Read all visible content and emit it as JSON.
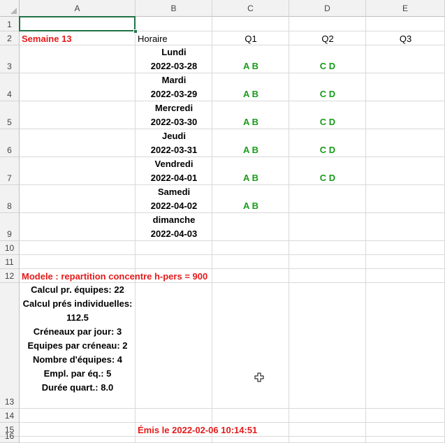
{
  "sheet": {
    "columns": [
      "A",
      "B",
      "C",
      "D",
      "E"
    ],
    "rows": [
      "1",
      "2",
      "3",
      "4",
      "5",
      "6",
      "7",
      "8",
      "9",
      "10",
      "11",
      "12",
      "13",
      "14",
      "15",
      "16"
    ]
  },
  "header_row": {
    "a2": "Semaine 13",
    "b2": "Horaire",
    "c2": "Q1",
    "d2": "Q2",
    "e2": "Q3"
  },
  "schedule": [
    {
      "day": "Lundi",
      "date": "2022-03-28",
      "q1": "A B",
      "q2": "C D"
    },
    {
      "day": "Mardi",
      "date": "2022-03-29",
      "q1": "A B",
      "q2": "C D"
    },
    {
      "day": "Mercredi",
      "date": "2022-03-30",
      "q1": "A B",
      "q2": "C D"
    },
    {
      "day": "Jeudi",
      "date": "2022-03-31",
      "q1": "A B",
      "q2": "C D"
    },
    {
      "day": "Vendredi",
      "date": "2022-04-01",
      "q1": "A B",
      "q2": "C D"
    },
    {
      "day": "Samedi",
      "date": "2022-04-02",
      "q1": "A B",
      "q2": ""
    },
    {
      "day": "dimanche",
      "date": "2022-04-03",
      "q1": "",
      "q2": ""
    }
  ],
  "model_title": "Modele : repartition concentre h-pers = 900",
  "summary_lines": [
    "Calcul pr. équipes: 22",
    "Calcul prés individuelles:",
    "112.5",
    "Créneaux par jour: 3",
    "Equipes par créneau: 2",
    "Nombre d'équipes: 4",
    "Empl. par éq.: 5",
    "Durée quart.: 8.0"
  ],
  "issued": "Émis le 2022-02-06 10:14:51",
  "colors": {
    "red": "#e41a1a",
    "green": "#1a9a1a",
    "selection": "#217346"
  },
  "icons": {
    "cursor": "plus-cursor-icon"
  }
}
